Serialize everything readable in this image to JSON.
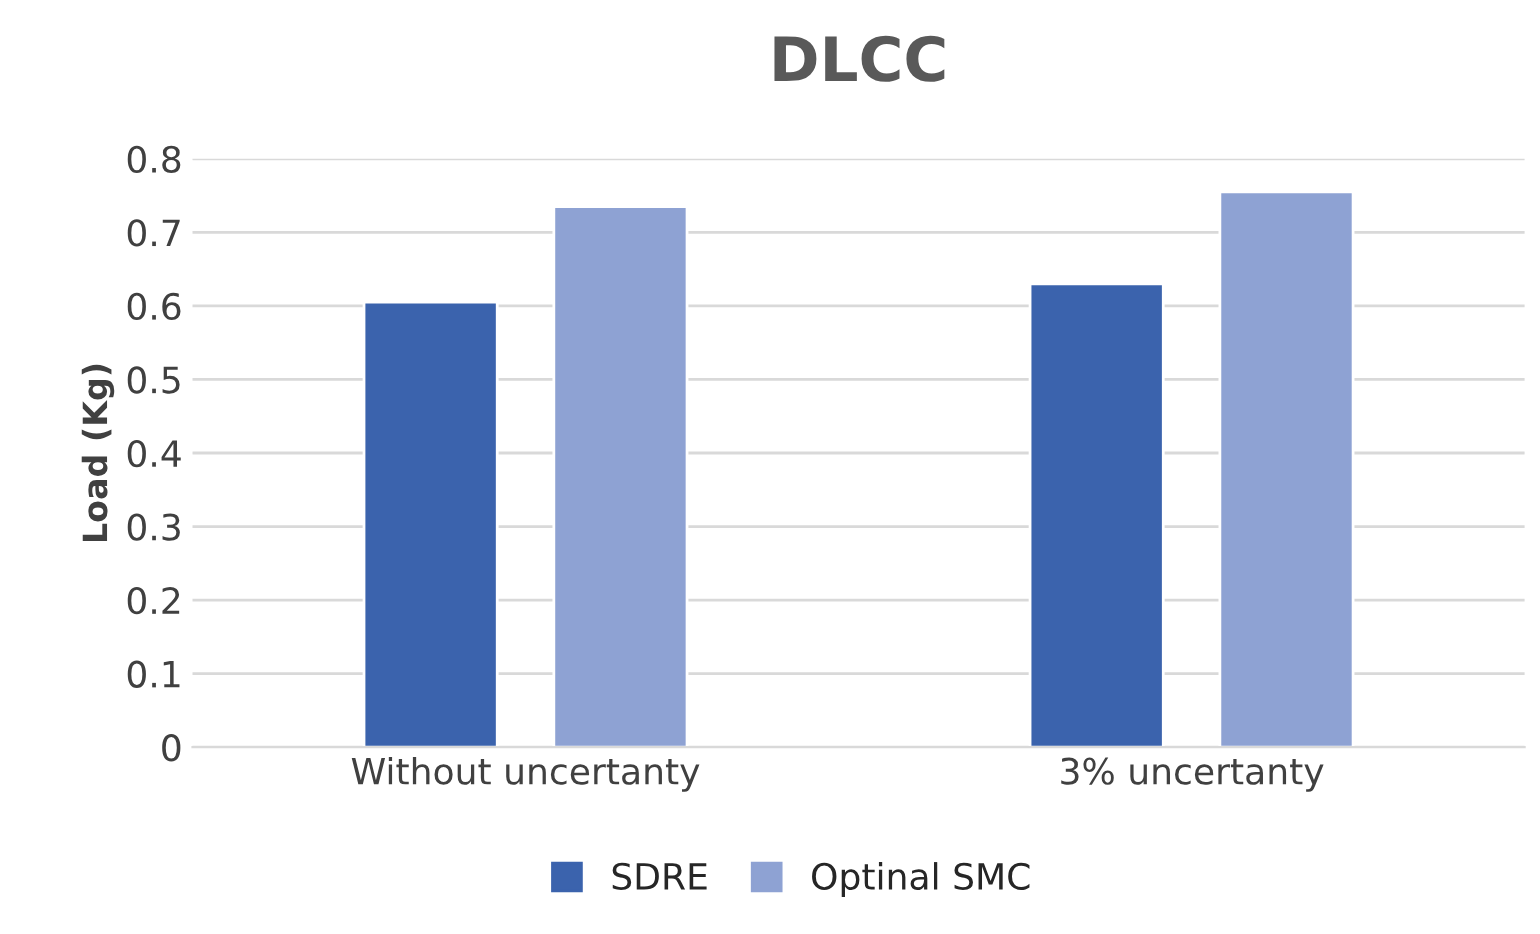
{
  "chart_data": {
    "type": "bar",
    "title": "DLCC",
    "ylabel": "Load (Kg)",
    "categories": [
      "Without uncertanty",
      "3% uncertanty"
    ],
    "series": [
      {
        "name": "SDRE",
        "color": "#3b63ad",
        "values": [
          0.605,
          0.63
        ]
      },
      {
        "name": "Optinal SMC",
        "color": "#8ea2d3",
        "values": [
          0.735,
          0.755
        ]
      }
    ],
    "ylim": [
      0,
      0.8
    ],
    "yticks": [
      0,
      0.1,
      0.2,
      0.3,
      0.4,
      0.5,
      0.6,
      0.7,
      0.8
    ],
    "grid": "y",
    "legend": "bottom"
  }
}
